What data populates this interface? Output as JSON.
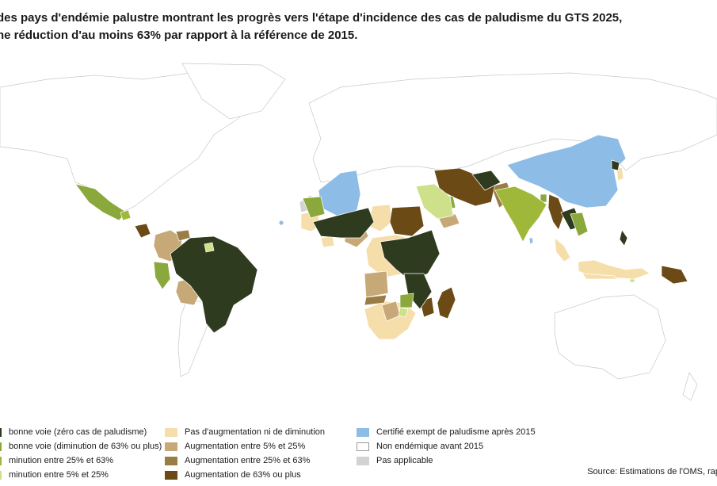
{
  "title": {
    "line1": "des pays d'endémie palustre montrant les progrès vers l'étape d'incidence des cas de paludisme du GTS 2025,",
    "line2": "ne réduction d'au moins 63% par rapport à la référence de 2015."
  },
  "colors": {
    "zero_cases": "#2f3b1e",
    "on_track_63": "#8aa83c",
    "dim_25_63": "#9fb83a",
    "dim_5_25": "#cfe08a",
    "no_change": "#f6deaa",
    "inc_5_25": "#c7a877",
    "inc_25_63": "#9a7d44",
    "inc_63_plus": "#6b4a16",
    "certified": "#8dbde6",
    "non_endemic": "#ffffff",
    "not_applicable": "#d3d3d3",
    "base_land": "#ffffff",
    "border": "#c8c8c8"
  },
  "legend": {
    "col1": [
      {
        "label": "bonne voie (zéro cas de paludisme)",
        "color_key": "zero_cases"
      },
      {
        "label": "bonne voie (diminution de 63% ou plus)",
        "color_key": "on_track_63"
      },
      {
        "label": "minution entre 25% et 63%",
        "color_key": "dim_25_63"
      },
      {
        "label": "minution entre 5% et 25%",
        "color_key": "dim_5_25"
      }
    ],
    "col2": [
      {
        "label": "Pas d'augmentation ni de diminution",
        "color_key": "no_change"
      },
      {
        "label": "Augmentation entre 5% et 25%",
        "color_key": "inc_5_25"
      },
      {
        "label": "Augmentation entre 25% et 63%",
        "color_key": "inc_25_63"
      },
      {
        "label": "Augmentation de 63% ou plus",
        "color_key": "inc_63_plus"
      }
    ],
    "col3": [
      {
        "label": "Certifié exempt de paludisme après 2015",
        "color_key": "certified"
      },
      {
        "label": "Non endémique avant 2015",
        "color_key": "non_endemic"
      },
      {
        "label": "Pas applicable",
        "color_key": "not_applicable"
      }
    ]
  },
  "source": "Source: Estimations de l'OMS, rap"
}
